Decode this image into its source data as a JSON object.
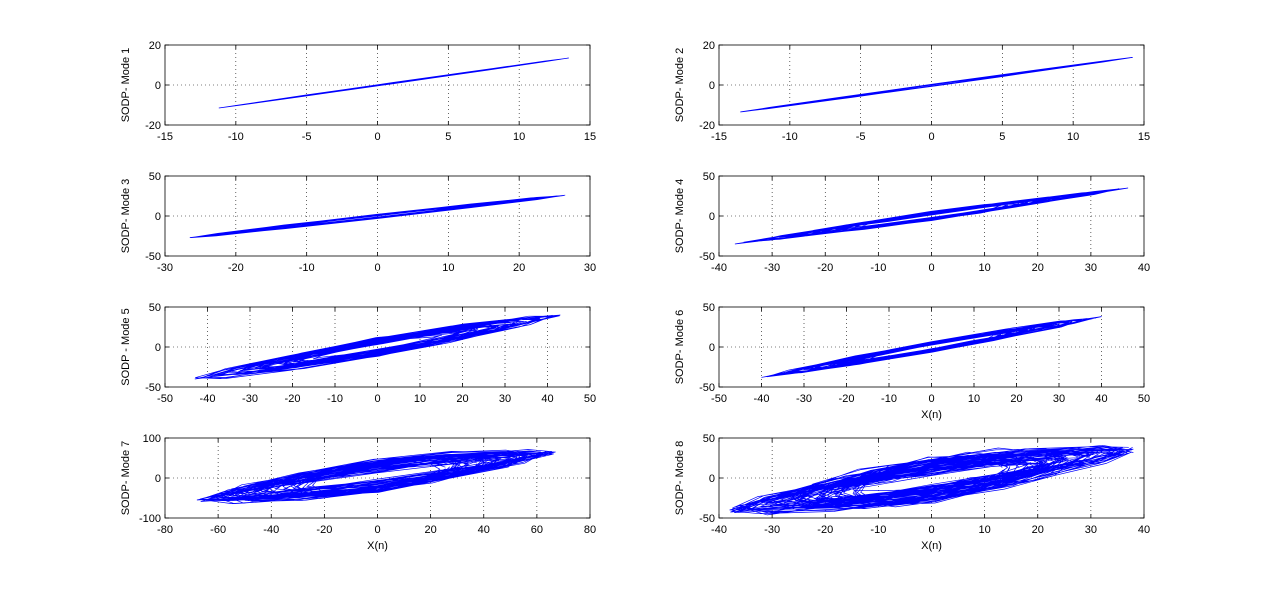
{
  "chart_data": [
    {
      "type": "line",
      "ylabel": "SODP- Mode 1",
      "xlabel": "",
      "xlim": [
        -15,
        15
      ],
      "ylim": [
        -20,
        20
      ],
      "xticks": [
        -15,
        -10,
        -5,
        0,
        5,
        10,
        15
      ],
      "yticks": [
        -20,
        0,
        20
      ],
      "grid": true,
      "series": [
        {
          "color": "#0000ff",
          "pattern": "elongated-orbit",
          "x_range": [
            -11.2,
            13.5
          ],
          "y_range": [
            -11.5,
            13.5
          ],
          "width": 1.2
        }
      ]
    },
    {
      "type": "line",
      "ylabel": "SODP- Mode 2",
      "xlabel": "",
      "xlim": [
        -15,
        15
      ],
      "ylim": [
        -20,
        20
      ],
      "xticks": [
        -15,
        -10,
        -5,
        0,
        5,
        10,
        15
      ],
      "yticks": [
        -20,
        0,
        20
      ],
      "grid": true,
      "series": [
        {
          "color": "#0000ff",
          "pattern": "elongated-orbit",
          "x_range": [
            -13.5,
            14.2
          ],
          "y_range": [
            -13.5,
            13.8
          ],
          "width": 2.2
        }
      ]
    },
    {
      "type": "line",
      "ylabel": "SODP- Mode 3",
      "xlabel": "",
      "xlim": [
        -30,
        30
      ],
      "ylim": [
        -50,
        50
      ],
      "xticks": [
        -30,
        -20,
        -10,
        0,
        10,
        20,
        30
      ],
      "yticks": [
        -50,
        0,
        50
      ],
      "grid": true,
      "series": [
        {
          "color": "#0000ff",
          "pattern": "elongated-orbit",
          "x_range": [
            -26.5,
            26.5
          ],
          "y_range": [
            -27,
            26
          ],
          "width": 4
        }
      ]
    },
    {
      "type": "line",
      "ylabel": "SODP- Mode 4",
      "xlabel": "",
      "xlim": [
        -40,
        40
      ],
      "ylim": [
        -50,
        50
      ],
      "xticks": [
        -40,
        -30,
        -20,
        -10,
        0,
        10,
        20,
        30,
        40
      ],
      "yticks": [
        -50,
        0,
        50
      ],
      "grid": true,
      "series": [
        {
          "color": "#0000ff",
          "pattern": "elongated-orbit",
          "x_range": [
            -37,
            37
          ],
          "y_range": [
            -35,
            35
          ],
          "width": 9
        }
      ]
    },
    {
      "type": "line",
      "ylabel": "SODP - Mode 5",
      "xlabel": "",
      "xlim": [
        -50,
        50
      ],
      "ylim": [
        -50,
        50
      ],
      "xticks": [
        -50,
        -40,
        -30,
        -20,
        -10,
        0,
        10,
        20,
        30,
        40,
        50
      ],
      "yticks": [
        -50,
        0,
        50
      ],
      "grid": true,
      "series": [
        {
          "color": "#0000ff",
          "pattern": "elongated-orbit",
          "x_range": [
            -43,
            43
          ],
          "y_range": [
            -40,
            40
          ],
          "width": 18
        }
      ]
    },
    {
      "type": "line",
      "ylabel": "SODP- Mode 6",
      "xlabel": "X(n)",
      "xlim": [
        -50,
        50
      ],
      "ylim": [
        -50,
        50
      ],
      "xticks": [
        -50,
        -40,
        -30,
        -20,
        -10,
        0,
        10,
        20,
        30,
        40,
        50
      ],
      "yticks": [
        -50,
        0,
        50
      ],
      "grid": true,
      "series": [
        {
          "color": "#0000ff",
          "pattern": "elongated-orbit",
          "x_range": [
            -40,
            40
          ],
          "y_range": [
            -38,
            38
          ],
          "width": 10
        }
      ]
    },
    {
      "type": "line",
      "ylabel": "SODP- Mode 7",
      "xlabel": "X(n)",
      "xlim": [
        -80,
        80
      ],
      "ylim": [
        -100,
        100
      ],
      "xticks": [
        -80,
        -60,
        -40,
        -20,
        0,
        20,
        40,
        60,
        80
      ],
      "yticks": [
        -100,
        0,
        100
      ],
      "grid": true,
      "series": [
        {
          "color": "#0000ff",
          "pattern": "elongated-orbit",
          "x_range": [
            -68,
            67
          ],
          "y_range": [
            -55,
            65
          ],
          "width": 30
        }
      ]
    },
    {
      "type": "line",
      "ylabel": "SODP- Mode 8",
      "xlabel": "X(n)",
      "xlim": [
        -40,
        40
      ],
      "ylim": [
        -50,
        50
      ],
      "xticks": [
        -40,
        -30,
        -20,
        -10,
        0,
        10,
        20,
        30,
        40
      ],
      "yticks": [
        -50,
        0,
        50
      ],
      "grid": true,
      "series": [
        {
          "color": "#0000ff",
          "pattern": "elongated-orbit",
          "x_range": [
            -38,
            38
          ],
          "y_range": [
            -40,
            36
          ],
          "width": 45
        }
      ]
    }
  ]
}
